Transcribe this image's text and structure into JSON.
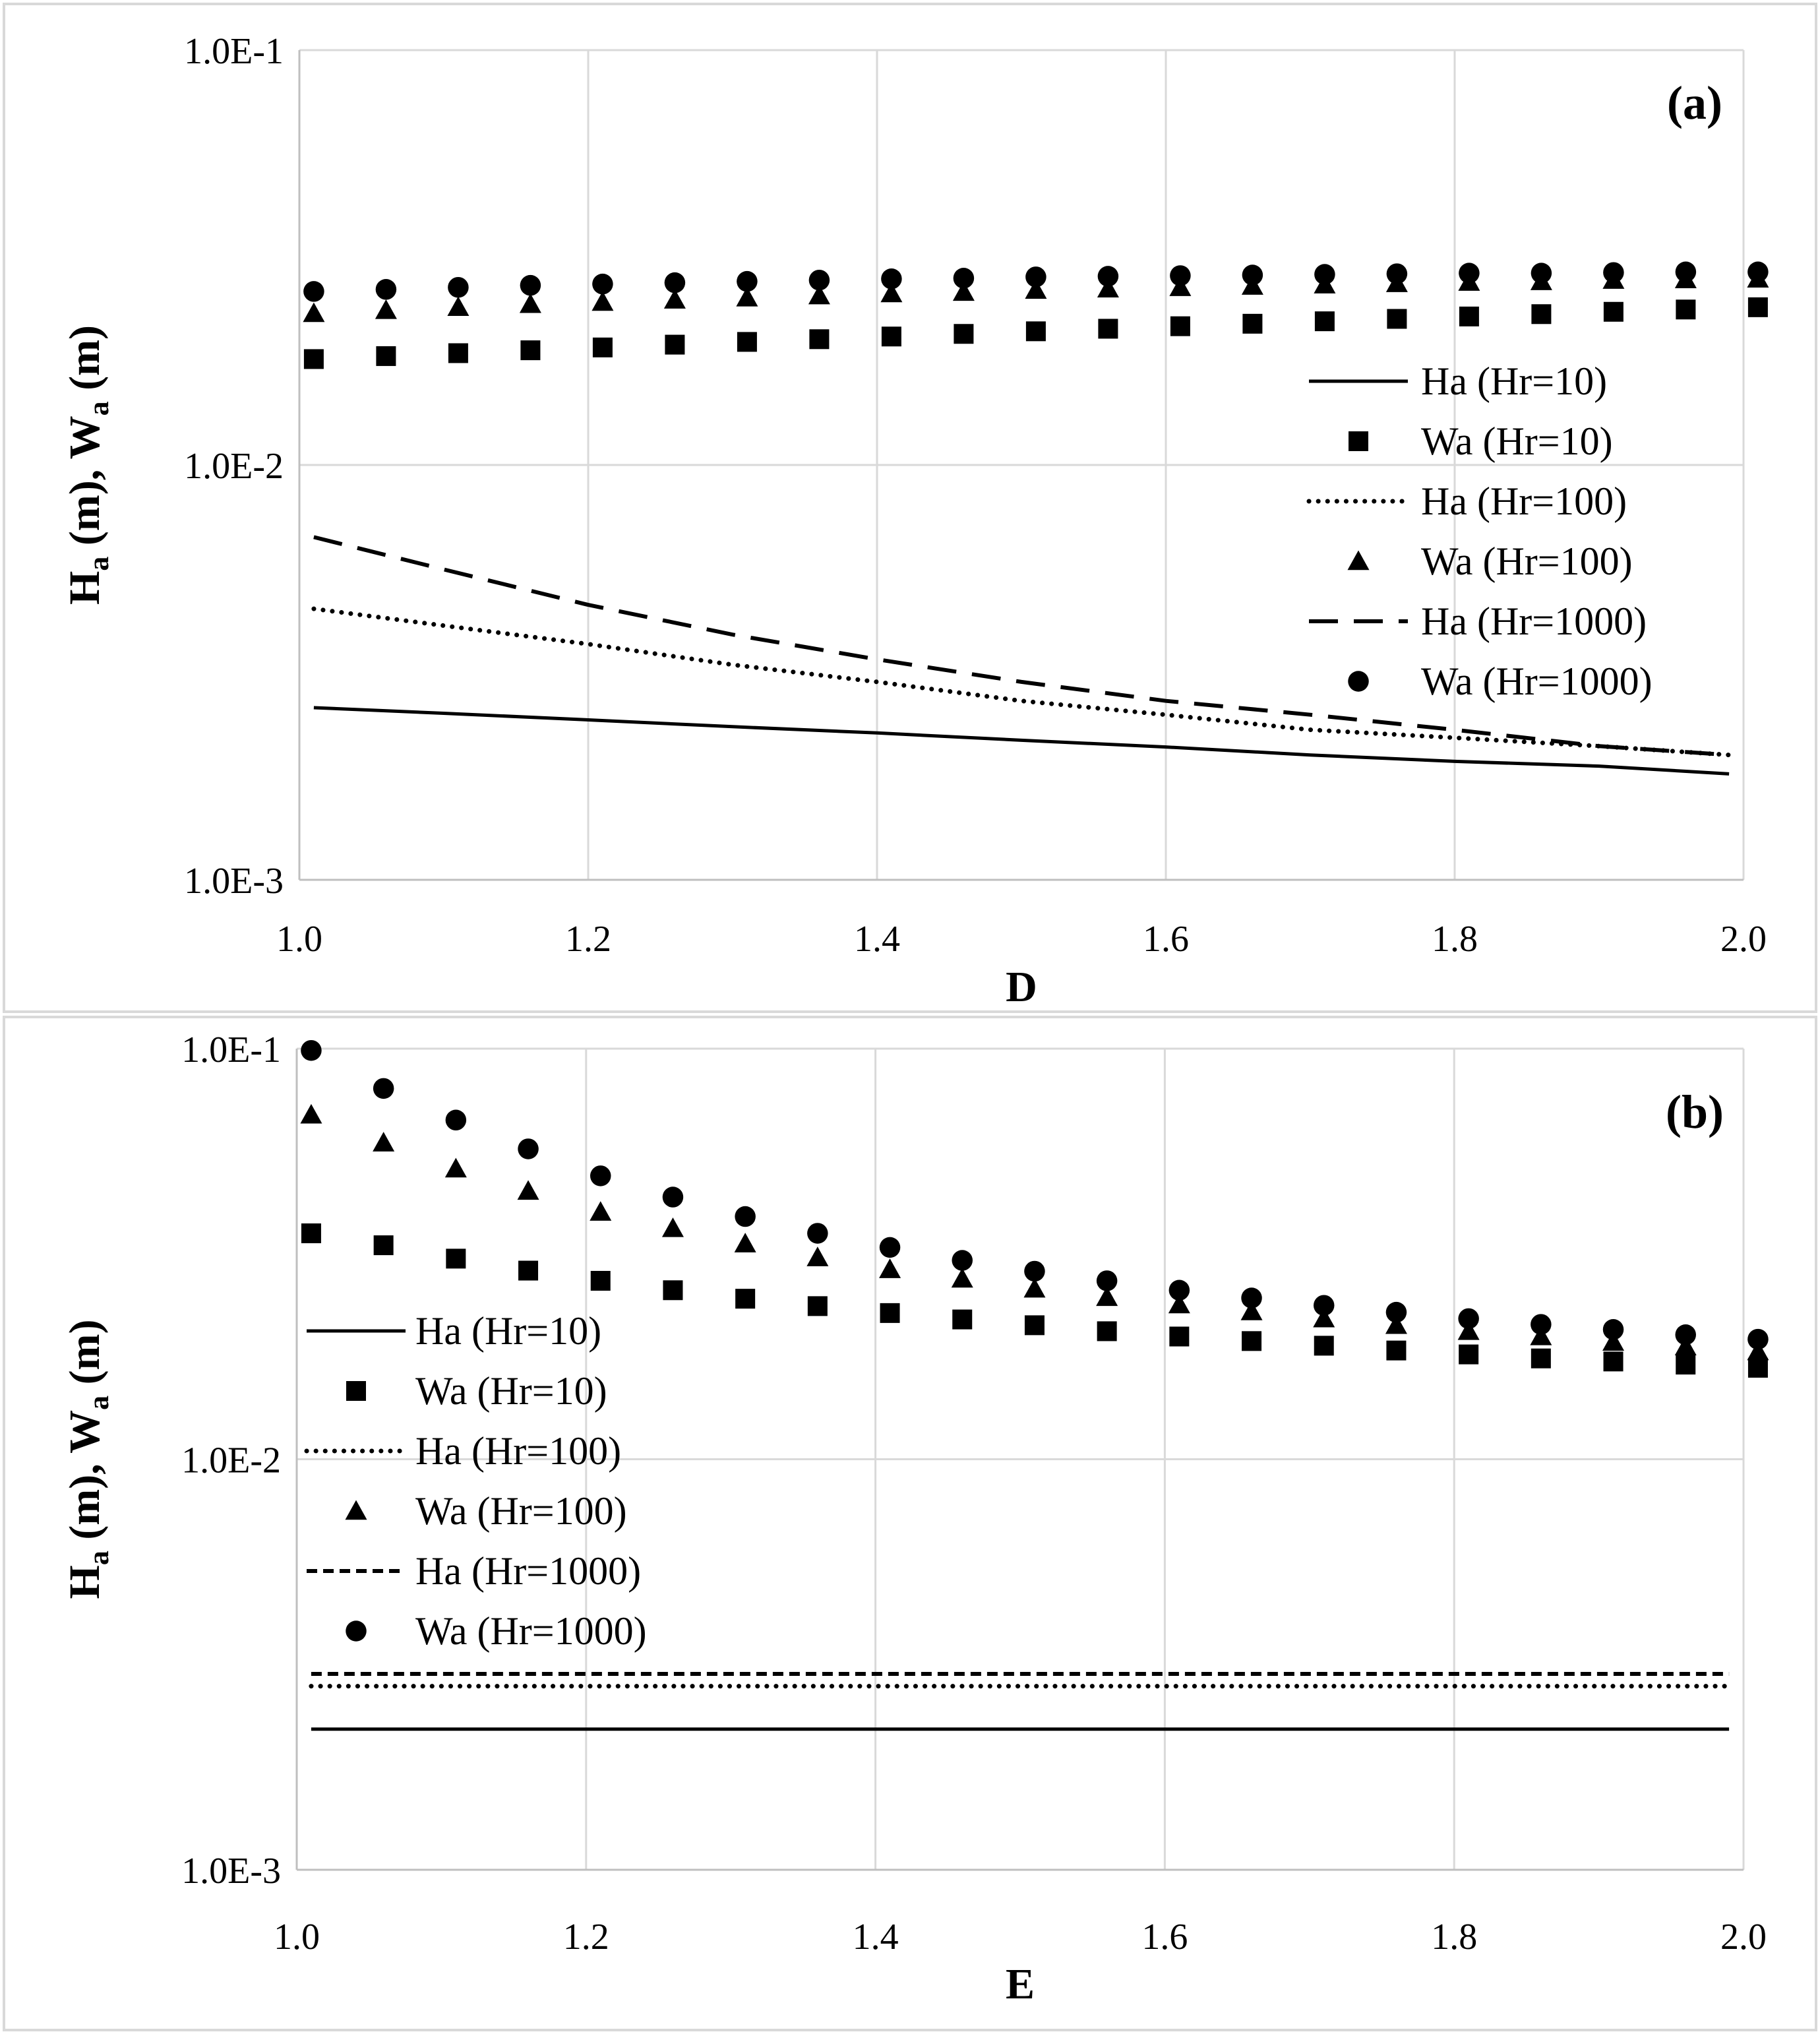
{
  "chart_data": [
    {
      "type": "line",
      "panel_label": "(a)",
      "xlabel": "D",
      "ylabel": {
        "main1": "H",
        "sub1": "a",
        "mid": " (m), W",
        "sub2": "a",
        "end": " (m)"
      },
      "xlim": [
        1.0,
        2.0
      ],
      "ylim": [
        0.001,
        0.1
      ],
      "yscale": "log",
      "grid": true,
      "x_ticks": [
        "1.0",
        "1.2",
        "1.4",
        "1.6",
        "1.8",
        "2.0"
      ],
      "y_ticks": [
        "1.0E-3",
        "1.0E-2",
        "1.0E-1"
      ],
      "legend_position": "right",
      "series": [
        {
          "name": "Ha (Hr=10)",
          "style": "solid",
          "x": [
            1.01,
            1.1,
            1.2,
            1.3,
            1.4,
            1.5,
            1.6,
            1.7,
            1.8,
            1.9,
            1.99
          ],
          "values": [
            0.0026,
            0.00252,
            0.00243,
            0.00234,
            0.00226,
            0.00217,
            0.00209,
            0.002,
            0.00193,
            0.00188,
            0.0018
          ]
        },
        {
          "name": "Wa (Hr=10)",
          "style": "square",
          "x": [
            1.01,
            1.06,
            1.11,
            1.16,
            1.21,
            1.26,
            1.31,
            1.36,
            1.41,
            1.46,
            1.51,
            1.56,
            1.61,
            1.66,
            1.71,
            1.76,
            1.81,
            1.86,
            1.91,
            1.96,
            2.01
          ],
          "values": [
            0.018,
            0.0183,
            0.0186,
            0.0189,
            0.0192,
            0.0195,
            0.0198,
            0.0201,
            0.0204,
            0.0207,
            0.021,
            0.0213,
            0.0216,
            0.0219,
            0.0222,
            0.0225,
            0.0228,
            0.0231,
            0.0234,
            0.0237,
            0.024
          ]
        },
        {
          "name": "Ha (Hr=100)",
          "style": "dotted",
          "x": [
            1.01,
            1.1,
            1.2,
            1.3,
            1.4,
            1.5,
            1.6,
            1.7,
            1.8,
            1.9,
            1.99
          ],
          "values": [
            0.0045,
            0.0041,
            0.0037,
            0.0033,
            0.003,
            0.0027,
            0.0025,
            0.0023,
            0.0022,
            0.0021,
            0.002
          ]
        },
        {
          "name": "Wa (Hr=100)",
          "style": "triangle",
          "x": [
            1.01,
            1.06,
            1.11,
            1.16,
            1.21,
            1.26,
            1.31,
            1.36,
            1.41,
            1.46,
            1.51,
            1.56,
            1.61,
            1.66,
            1.71,
            1.76,
            1.81,
            1.86,
            1.91,
            1.96,
            2.01
          ],
          "values": [
            0.0232,
            0.0236,
            0.024,
            0.0244,
            0.0247,
            0.025,
            0.0253,
            0.0256,
            0.0259,
            0.0261,
            0.0264,
            0.0266,
            0.0268,
            0.027,
            0.0272,
            0.0274,
            0.0276,
            0.0277,
            0.0279,
            0.028,
            0.0281
          ]
        },
        {
          "name": "Ha (Hr=1000)",
          "style": "dashed",
          "x": [
            1.01,
            1.1,
            1.2,
            1.3,
            1.4,
            1.5,
            1.6,
            1.7,
            1.8,
            1.9,
            1.99
          ],
          "values": [
            0.0067,
            0.0056,
            0.0046,
            0.0039,
            0.0034,
            0.003,
            0.0027,
            0.0025,
            0.0023,
            0.0021,
            0.002
          ]
        },
        {
          "name": "Wa (Hr=1000)",
          "style": "circle",
          "x": [
            1.01,
            1.06,
            1.11,
            1.16,
            1.21,
            1.26,
            1.31,
            1.36,
            1.41,
            1.46,
            1.51,
            1.56,
            1.61,
            1.66,
            1.71,
            1.76,
            1.81,
            1.86,
            1.91,
            1.96,
            2.01
          ],
          "values": [
            0.0262,
            0.0265,
            0.0268,
            0.0271,
            0.0273,
            0.0275,
            0.0277,
            0.0279,
            0.0281,
            0.0282,
            0.0284,
            0.0285,
            0.0286,
            0.0287,
            0.0288,
            0.0289,
            0.029,
            0.029,
            0.0291,
            0.0292,
            0.0292
          ]
        }
      ]
    },
    {
      "type": "line",
      "panel_label": "(b)",
      "xlabel": "E",
      "ylabel": {
        "main1": "H",
        "sub1": "a",
        "mid": " (m), W",
        "sub2": "a",
        "end": " (m)"
      },
      "xlim": [
        1.0,
        2.0
      ],
      "ylim": [
        0.001,
        0.1
      ],
      "yscale": "log",
      "grid": true,
      "x_ticks": [
        "1.0",
        "1.2",
        "1.4",
        "1.6",
        "1.8",
        "2.0"
      ],
      "y_ticks": [
        "1.0E-3",
        "1.0E-2",
        "1.0E-1"
      ],
      "legend_position": "left",
      "series": [
        {
          "name": "Ha (Hr=10)",
          "style": "solid",
          "x": [
            1.01,
            1.99
          ],
          "values": [
            0.0022,
            0.0022
          ]
        },
        {
          "name": "Wa (Hr=10)",
          "style": "square",
          "x": [
            1.01,
            1.06,
            1.11,
            1.16,
            1.21,
            1.26,
            1.31,
            1.36,
            1.41,
            1.46,
            1.51,
            1.56,
            1.61,
            1.66,
            1.71,
            1.76,
            1.81,
            1.86,
            1.91,
            1.96,
            2.01
          ],
          "values": [
            0.0355,
            0.0332,
            0.0308,
            0.0288,
            0.0272,
            0.0258,
            0.0246,
            0.0236,
            0.0227,
            0.0219,
            0.0212,
            0.0205,
            0.0199,
            0.0194,
            0.0189,
            0.0184,
            0.018,
            0.0176,
            0.0173,
            0.017,
            0.0167
          ]
        },
        {
          "name": "Ha (Hr=100)",
          "style": "dotted",
          "x": [
            1.01,
            1.99
          ],
          "values": [
            0.0028,
            0.0028
          ]
        },
        {
          "name": "Wa (Hr=100)",
          "style": "triangle",
          "x": [
            1.01,
            1.06,
            1.11,
            1.16,
            1.21,
            1.26,
            1.31,
            1.36,
            1.41,
            1.46,
            1.51,
            1.56,
            1.61,
            1.66,
            1.71,
            1.76,
            1.81,
            1.86,
            1.91,
            1.96,
            2.01
          ],
          "values": [
            0.069,
            0.059,
            0.051,
            0.045,
            0.04,
            0.0365,
            0.0335,
            0.031,
            0.029,
            0.0275,
            0.026,
            0.0248,
            0.0238,
            0.0229,
            0.022,
            0.0212,
            0.0205,
            0.0199,
            0.0193,
            0.0188,
            0.0183
          ]
        },
        {
          "name": "Ha (Hr=1000)",
          "style": "short-dash",
          "x": [
            1.01,
            1.99
          ],
          "values": [
            0.003,
            0.003
          ]
        },
        {
          "name": "Wa (Hr=1000)",
          "style": "circle",
          "x": [
            1.01,
            1.06,
            1.11,
            1.16,
            1.21,
            1.26,
            1.31,
            1.36,
            1.41,
            1.46,
            1.51,
            1.56,
            1.61,
            1.66,
            1.71,
            1.76,
            1.81,
            1.86,
            1.91,
            1.96,
            2.01
          ],
          "values": [
            0.099,
            0.08,
            0.067,
            0.057,
            0.049,
            0.0435,
            0.039,
            0.0355,
            0.0328,
            0.0305,
            0.0287,
            0.0272,
            0.0258,
            0.0247,
            0.0237,
            0.0228,
            0.022,
            0.0213,
            0.0207,
            0.0201,
            0.0196
          ]
        }
      ]
    }
  ]
}
